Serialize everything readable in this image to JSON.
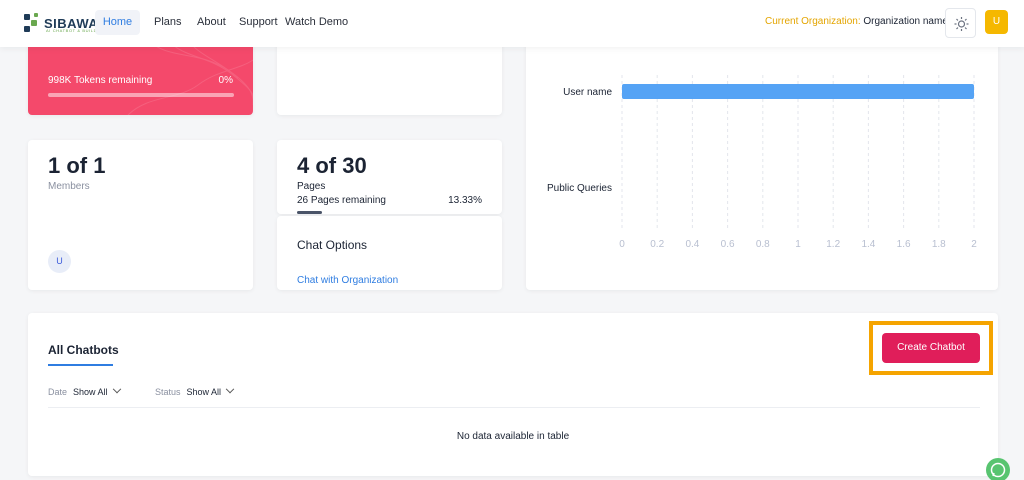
{
  "navbar": {
    "logo_text": "SIBAWAY",
    "logo_sub": "AI CHATBOT & BUILDER",
    "items": [
      {
        "label": "Home"
      },
      {
        "label": "Plans"
      },
      {
        "label": "About"
      },
      {
        "label": "Support"
      },
      {
        "label": "Watch Demo"
      }
    ],
    "org_label": "Current Organization:",
    "org_value": "Organization name",
    "avatar": "U"
  },
  "tokens": {
    "remaining_label": "998K Tokens remaining",
    "percent": "0%"
  },
  "members": {
    "count": "1 of 1",
    "label": "Members",
    "avatar": "U"
  },
  "pages": {
    "count": "4 of 30",
    "label": "Pages",
    "remaining": "26 Pages remaining",
    "percent": "13.33%",
    "progress": 0.1333
  },
  "chat_options": {
    "title": "Chat Options",
    "link": "Chat with Organization"
  },
  "chart_data": {
    "type": "bar",
    "orientation": "horizontal",
    "categories": [
      "User name",
      "Public Queries"
    ],
    "values": [
      2,
      0
    ],
    "xlim": [
      0,
      2
    ],
    "xticks": [
      "0",
      "0.2",
      "0.4",
      "0.6",
      "0.8",
      "1",
      "1.2",
      "1.4",
      "1.6",
      "1.8",
      "2"
    ],
    "bar_color": "#55a3f5",
    "grid": "vertical dashed"
  },
  "chatbots": {
    "tab": "All Chatbots",
    "create_label": "Create Chatbot",
    "date_label": "Date",
    "date_value": "Show All",
    "status_label": "Status",
    "status_value": "Show All",
    "empty": "No data available in table"
  }
}
